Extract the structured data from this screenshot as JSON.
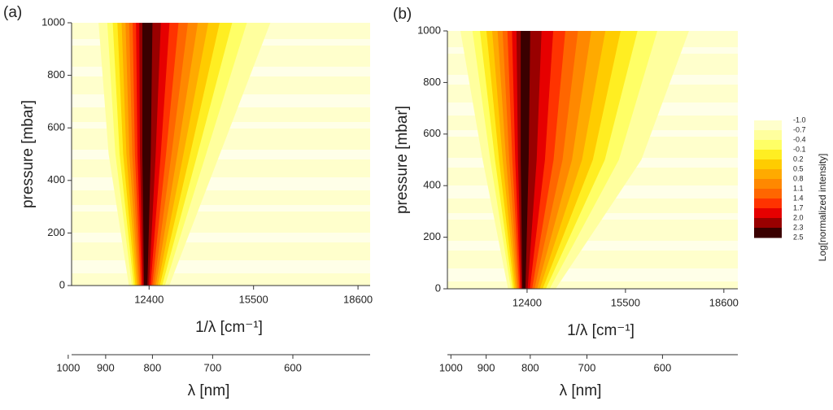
{
  "chart_data": [
    {
      "type": "contour",
      "panel_label": "(a)",
      "ylabel": "pressure [mbar]",
      "xlabel": "1/λ [cm⁻¹]",
      "xlim": [
        10100,
        18960
      ],
      "xticks": [
        12400,
        15500,
        18600
      ],
      "ylim": [
        0,
        1000
      ],
      "yticks": [
        0,
        200,
        400,
        600,
        800,
        1000
      ],
      "x2label": "λ [nm]",
      "x2ticks": [
        1000,
        900,
        800,
        700,
        600
      ]
    },
    {
      "type": "contour",
      "panel_label": "(b)",
      "ylabel": "pressure [mbar]",
      "xlabel": "1/λ [cm⁻¹]",
      "xlim": [
        9890,
        19040
      ],
      "xticks": [
        12400,
        15500,
        18600
      ],
      "ylim": [
        0,
        1000
      ],
      "yticks": [
        0,
        200,
        400,
        600,
        800,
        1000
      ],
      "x2label": "λ [nm]",
      "x2ticks": [
        1000,
        900,
        800,
        700,
        600
      ],
      "colorbar": {
        "label": "Log[normalized intensity]",
        "levels": [
          -1.0,
          -0.7,
          -0.4,
          -0.1,
          0.2,
          0.5,
          0.8,
          1.1,
          1.4,
          1.7,
          2.0,
          2.3,
          2.5
        ],
        "level_labels": [
          "-1.0",
          "-0.7",
          "-0.4",
          "-0.1",
          "0.2",
          "0.5",
          "0.8",
          "1.1",
          "1.4",
          "1.7",
          "2.0",
          "2.3",
          "2.5"
        ],
        "colors": [
          "#ffffcc",
          "#ffff9e",
          "#ffff66",
          "#ffee22",
          "#ffcc00",
          "#ffaa00",
          "#ff8800",
          "#ff6600",
          "#ff3300",
          "#e60000",
          "#990000",
          "#3a0000"
        ]
      }
    }
  ]
}
